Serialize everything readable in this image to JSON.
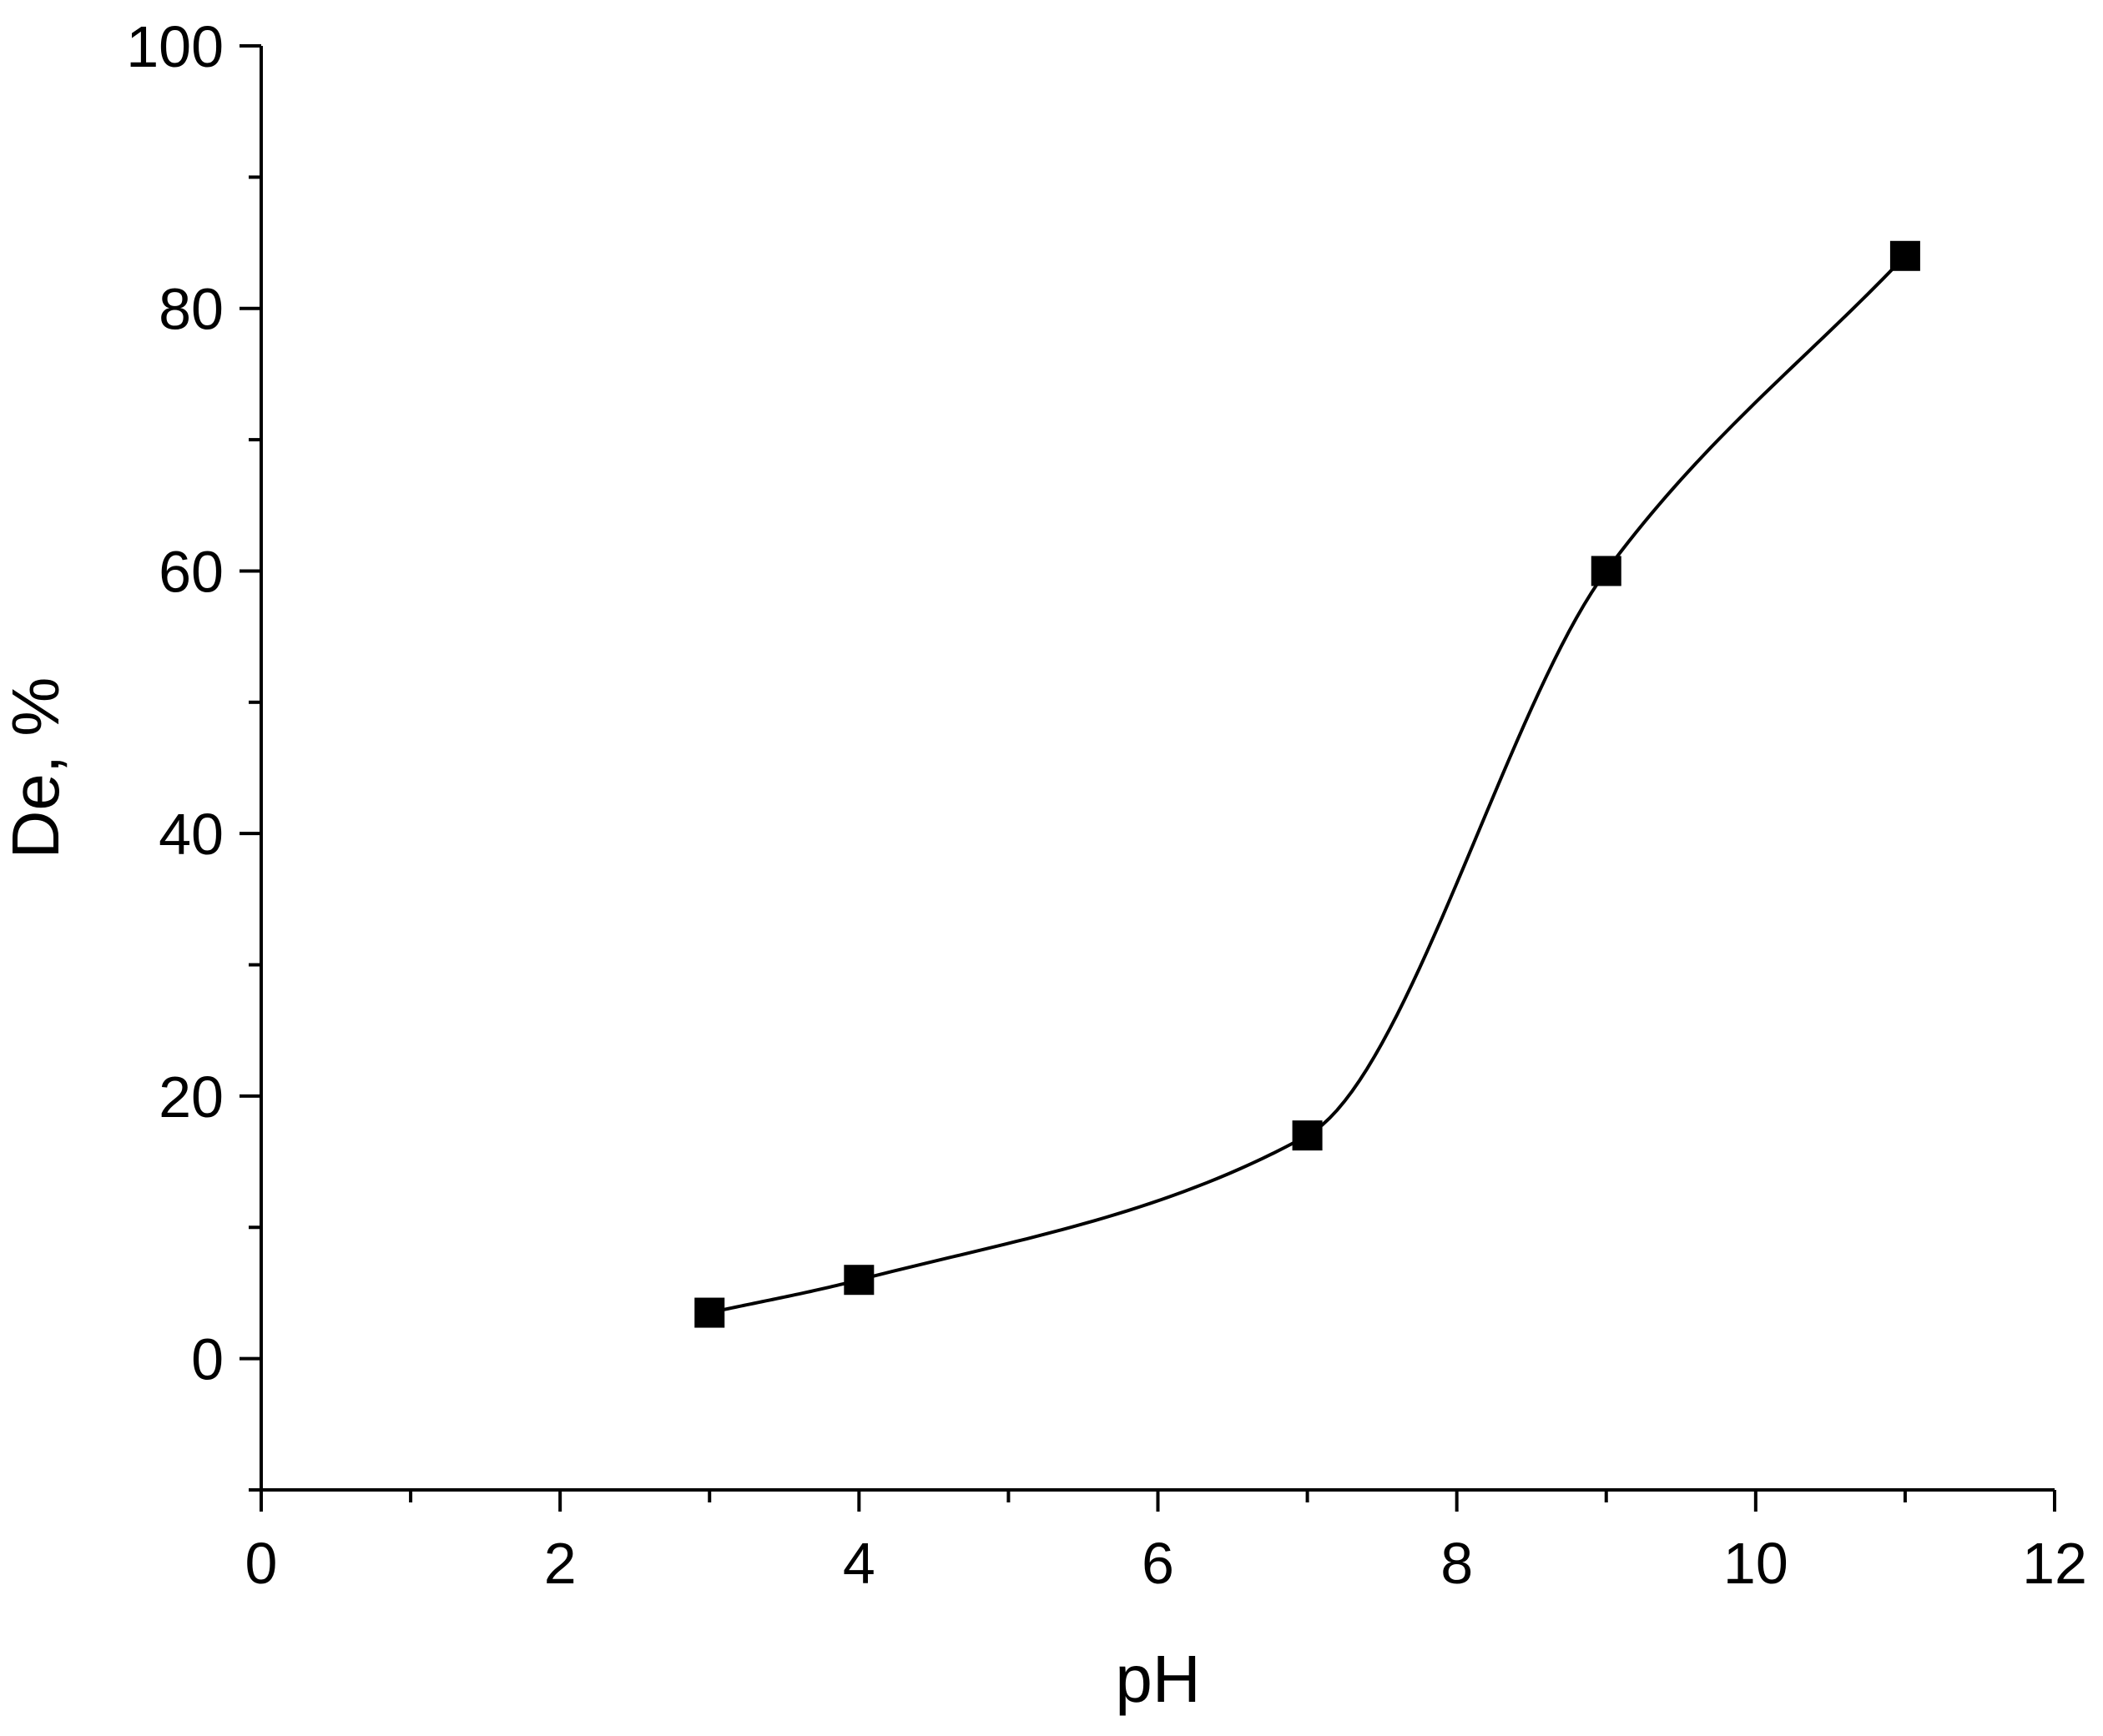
{
  "chart_data": {
    "type": "line",
    "title": "",
    "xlabel": "pH",
    "ylabel": "De, %",
    "xlim": [
      0,
      12
    ],
    "ylim": [
      -10,
      100
    ],
    "x_ticks": [
      0,
      2,
      4,
      6,
      8,
      10,
      12
    ],
    "x_minor_ticks": [
      1,
      3,
      5,
      7,
      9,
      11
    ],
    "y_ticks": [
      0,
      20,
      40,
      60,
      80,
      100
    ],
    "y_minor_ticks": [
      -10,
      10,
      30,
      50,
      70,
      90
    ],
    "grid": false,
    "legend": "none",
    "series": [
      {
        "marker": "square",
        "line": "smooth",
        "color": "#000000",
        "x": [
          3,
          4,
          7,
          9,
          11
        ],
        "y": [
          3.5,
          6,
          17,
          60,
          84
        ]
      }
    ]
  }
}
